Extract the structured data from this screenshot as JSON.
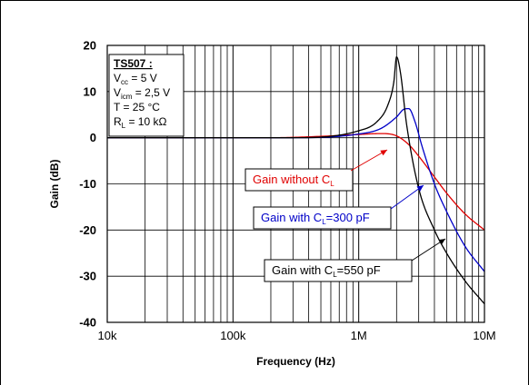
{
  "chart_data": {
    "type": "line",
    "xlabel": "Frequency (Hz)",
    "ylabel": "Gain (dB)",
    "xscale": "log",
    "xlim": [
      10000,
      10000000
    ],
    "ylim": [
      -40,
      20
    ],
    "grid": true,
    "x_ticks": [
      {
        "value": 10000,
        "label": "10k"
      },
      {
        "value": 100000,
        "label": "100k"
      },
      {
        "value": 1000000,
        "label": "1M"
      },
      {
        "value": 10000000,
        "label": "10M"
      }
    ],
    "y_ticks": [
      {
        "value": 20,
        "label": "20"
      },
      {
        "value": 10,
        "label": "10"
      },
      {
        "value": 0,
        "label": "0"
      },
      {
        "value": -10,
        "label": "-10"
      },
      {
        "value": -20,
        "label": "-20"
      },
      {
        "value": -30,
        "label": "-30"
      },
      {
        "value": -40,
        "label": "-40"
      }
    ],
    "conditions": {
      "title": "TS507 :",
      "rows": [
        {
          "main": "V",
          "sub": "cc",
          "rest": " = 5 V"
        },
        {
          "main": "V",
          "sub": "icm",
          "rest": " = 2,5 V"
        },
        {
          "main": "T = 25 °C",
          "sub": "",
          "rest": ""
        },
        {
          "main": "R",
          "sub": "L",
          "rest": " = 10 kΩ"
        }
      ]
    },
    "series": [
      {
        "color": "#e00000",
        "label": {
          "pre": "Gain without C",
          "sub": "L",
          "post": ""
        },
        "x": [
          10000,
          200000,
          500000,
          1000000,
          1500000,
          2000000,
          2500000,
          3000000,
          4000000,
          5000000,
          7000000,
          10000000
        ],
        "y": [
          0,
          0,
          0.3,
          0.7,
          0.9,
          0.4,
          -1.5,
          -4,
          -8.5,
          -12,
          -16.5,
          -20
        ]
      },
      {
        "color": "#0000c8",
        "label": {
          "pre": "Gain with C",
          "sub": "L",
          "post": "=300 pF"
        },
        "x": [
          10000,
          300000,
          1000000,
          1500000,
          2000000,
          2300000,
          2500000,
          2800000,
          3200000,
          4000000,
          5000000,
          7000000,
          10000000
        ],
        "y": [
          0,
          0,
          0.8,
          2,
          4.5,
          6.2,
          6.3,
          3.5,
          -2,
          -10,
          -16,
          -23.5,
          -29
        ]
      },
      {
        "color": "#000000",
        "label": {
          "pre": "Gain with C",
          "sub": "L",
          "post": "=550 pF"
        },
        "x": [
          10000,
          300000,
          1000000,
          1400000,
          1700000,
          1900000,
          2000000,
          2150000,
          2400000,
          3000000,
          4000000,
          5000000,
          7000000,
          10000000
        ],
        "y": [
          0,
          0,
          1.5,
          3.5,
          7,
          12,
          17.5,
          14,
          3,
          -11,
          -20,
          -25,
          -31,
          -36
        ]
      }
    ]
  }
}
